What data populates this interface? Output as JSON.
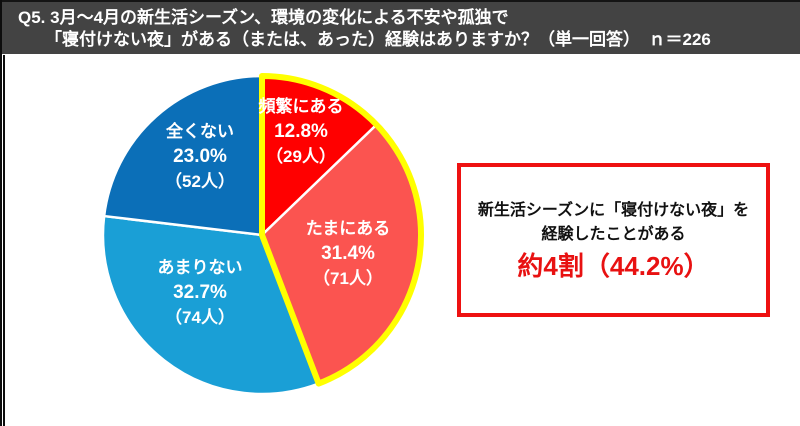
{
  "header": {
    "line1": "Q5. 3月～4月の新生活シーズン、環境の変化による不安や孤独で",
    "line2": "「寝付けない夜」がある（または、あった）経験はありますか？（単一回答）　ｎ＝226",
    "bg_color": "#434343",
    "text_color": "#FFFFFF",
    "n_value": "226"
  },
  "chart_data": {
    "type": "pie",
    "start_angle_deg": -90,
    "direction": "clockwise",
    "slice_border_color": "#FFFFFF",
    "segments": [
      {
        "label": "頻繁にある",
        "value": 12.8,
        "pct_text": "12.8%",
        "count": 29,
        "count_text": "（29人）",
        "color": "#FF0000",
        "text_color": "#FFFFFF"
      },
      {
        "label": "たまにある",
        "value": 31.4,
        "pct_text": "31.4%",
        "count": 71,
        "count_text": "（71人）",
        "color": "#FB5450",
        "text_color": "#FFFFFF"
      },
      {
        "label": "あまりない",
        "value": 32.7,
        "pct_text": "32.7%",
        "count": 74,
        "count_text": "（74人）",
        "color": "#1A9FD6",
        "text_color": "#FFFFFF"
      },
      {
        "label": "全くない",
        "value": 23.0,
        "pct_text": "23.0%",
        "count": 52,
        "count_text": "（52人）",
        "color": "#0B6FB8",
        "text_color": "#FFFFFF"
      }
    ],
    "highlight_outline": {
      "segments": [
        0,
        1
      ],
      "color": "#FFFF00",
      "combined_pct": 44.2
    }
  },
  "callout": {
    "line1": "新生活シーズンに「寝付けない夜」を",
    "line2": "経験したことがある",
    "line3": "約4割（44.2%）",
    "border_color": "#EE1111",
    "highlight_text_color": "#E81111"
  }
}
